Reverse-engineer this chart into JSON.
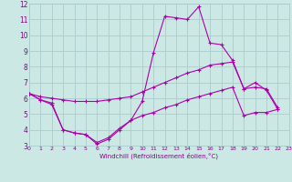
{
  "xlabel": "Windchill (Refroidissement éolien,°C)",
  "bg_color": "#cce8e4",
  "grid_color": "#aacccc",
  "line_color": "#aa00aa",
  "xlim": [
    0,
    23
  ],
  "ylim": [
    3,
    12
  ],
  "yticks": [
    3,
    4,
    5,
    6,
    7,
    8,
    9,
    10,
    11,
    12
  ],
  "xticks": [
    0,
    1,
    2,
    3,
    4,
    5,
    6,
    7,
    8,
    9,
    10,
    11,
    12,
    13,
    14,
    15,
    16,
    17,
    18,
    19,
    20,
    21,
    22,
    23
  ],
  "line1_x": [
    0,
    1,
    2,
    3,
    4,
    5,
    6,
    7,
    8,
    9,
    10,
    11,
    12,
    13,
    14,
    15,
    16,
    17,
    18,
    19,
    20,
    21,
    22
  ],
  "line1_y": [
    6.3,
    5.9,
    5.7,
    4.0,
    3.8,
    3.7,
    3.1,
    3.4,
    4.0,
    4.6,
    5.8,
    8.9,
    11.2,
    11.1,
    11.0,
    11.8,
    9.5,
    9.4,
    8.4,
    6.6,
    7.0,
    6.5,
    5.3
  ],
  "line2_x": [
    0,
    1,
    2,
    3,
    4,
    5,
    6,
    7,
    8,
    9,
    10,
    11,
    12,
    13,
    14,
    15,
    16,
    17,
    18,
    19,
    20,
    21,
    22
  ],
  "line2_y": [
    6.3,
    6.1,
    6.0,
    5.9,
    5.8,
    5.8,
    5.8,
    5.9,
    6.0,
    6.1,
    6.4,
    6.7,
    7.0,
    7.3,
    7.6,
    7.8,
    8.1,
    8.2,
    8.3,
    6.6,
    6.7,
    6.6,
    5.4
  ],
  "line3_x": [
    0,
    1,
    2,
    3,
    4,
    5,
    6,
    7,
    8,
    9,
    10,
    11,
    12,
    13,
    14,
    15,
    16,
    17,
    18,
    19,
    20,
    21,
    22
  ],
  "line3_y": [
    6.3,
    5.9,
    5.6,
    4.0,
    3.8,
    3.7,
    3.2,
    3.5,
    4.1,
    4.6,
    4.9,
    5.1,
    5.4,
    5.6,
    5.9,
    6.1,
    6.3,
    6.5,
    6.7,
    4.9,
    5.1,
    5.1,
    5.3
  ]
}
